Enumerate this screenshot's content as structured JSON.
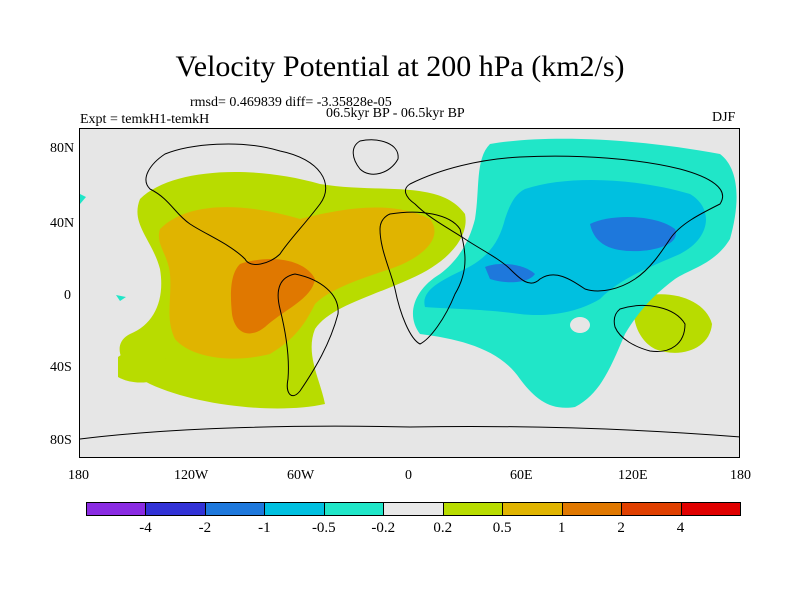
{
  "title": "Velocity Potential at 200 hPa (km2/s)",
  "stats": "rmsd= 0.469839 diff= -3.35828e-05",
  "experiment": "Expt = temkH1-temkH",
  "period": "06.5kyr BP - 06.5kyr BP",
  "season": "DJF",
  "y_axis": [
    "80N",
    "40N",
    "0",
    "40S",
    "80S"
  ],
  "x_axis": [
    "180",
    "120W",
    "60W",
    "0",
    "60E",
    "120E",
    "180"
  ],
  "colorbar": {
    "colors": [
      "#8a2be2",
      "#3232d6",
      "#1e78dc",
      "#00c0e0",
      "#20e6c8",
      "#e8e8e8",
      "#b8dc00",
      "#e0b400",
      "#e07800",
      "#e04000",
      "#e00000"
    ],
    "labels": [
      "-4",
      "-2",
      "-1",
      "-0.5",
      "-0.2",
      "0.2",
      "0.5",
      "1",
      "2",
      "4"
    ]
  },
  "map_colors": {
    "background": "#e6e6e6",
    "lime": "#b8dc00",
    "gold": "#e0b400",
    "orange": "#e07800",
    "cyan": "#20e6c8",
    "sky": "#00c0e0",
    "blue": "#1e78dc"
  }
}
